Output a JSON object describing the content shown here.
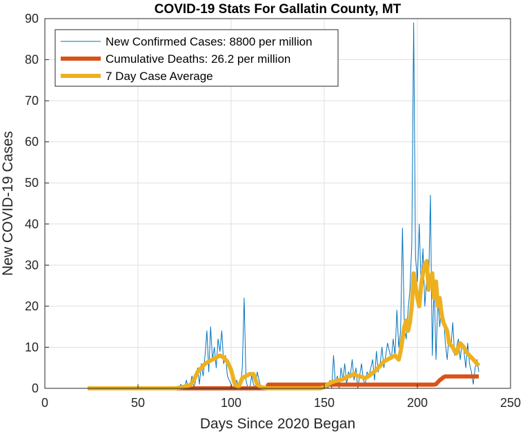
{
  "chart_data": {
    "type": "line",
    "title": "COVID-19 Stats For Gallatin County, MT",
    "xlabel": "Days Since 2020 Began",
    "ylabel": "New COVID-19 Cases",
    "xlim": [
      0,
      250
    ],
    "ylim": [
      0,
      90
    ],
    "xticks": [
      0,
      50,
      100,
      150,
      200,
      250
    ],
    "yticks": [
      0,
      10,
      20,
      30,
      40,
      50,
      60,
      70,
      80,
      90
    ],
    "grid": true,
    "legend_position": "top-left",
    "series": [
      {
        "name": "New Confirmed Cases: 8800 per million",
        "color": "#0072BD",
        "line_width": 1,
        "x": [
          23,
          70,
          72,
          73,
          74,
          75,
          76,
          77,
          78,
          79,
          80,
          81,
          82,
          83,
          84,
          85,
          86,
          87,
          88,
          89,
          90,
          91,
          92,
          93,
          94,
          95,
          96,
          97,
          98,
          99,
          100,
          101,
          102,
          103,
          104,
          105,
          106,
          107,
          108,
          109,
          110,
          111,
          112,
          113,
          114,
          115,
          116,
          120,
          125,
          130,
          135,
          140,
          145,
          148,
          150,
          151,
          152,
          153,
          154,
          155,
          156,
          157,
          158,
          159,
          160,
          161,
          162,
          163,
          164,
          165,
          166,
          167,
          168,
          169,
          170,
          171,
          172,
          173,
          174,
          175,
          176,
          177,
          178,
          179,
          180,
          181,
          182,
          183,
          184,
          185,
          186,
          187,
          188,
          189,
          190,
          191,
          192,
          193,
          194,
          195,
          196,
          197,
          198,
          199,
          200,
          201,
          202,
          203,
          204,
          205,
          206,
          207,
          208,
          209,
          210,
          211,
          212,
          213,
          214,
          215,
          216,
          217,
          218,
          219,
          220,
          221,
          222,
          223,
          224,
          225,
          226,
          227,
          228,
          229,
          230,
          231,
          232,
          233
        ],
        "y": [
          0,
          0,
          0,
          1,
          0,
          0,
          2,
          0,
          1,
          3,
          0,
          2,
          5,
          1,
          6,
          3,
          8,
          14,
          4,
          15,
          7,
          10,
          5,
          12,
          9,
          14,
          6,
          8,
          3,
          2,
          1,
          0,
          0,
          2,
          0,
          0,
          5,
          22,
          2,
          0,
          0,
          3,
          1,
          0,
          4,
          2,
          0,
          0,
          0,
          0,
          0,
          0,
          0,
          0,
          0,
          1,
          0,
          2,
          0,
          8,
          1,
          3,
          0,
          5,
          2,
          6,
          1,
          4,
          3,
          7,
          2,
          5,
          0,
          3,
          6,
          2,
          1,
          4,
          3,
          5,
          7,
          2,
          9,
          4,
          6,
          10,
          5,
          8,
          11,
          9,
          7,
          12,
          8,
          19,
          10,
          14,
          39,
          15,
          12,
          19,
          24,
          35,
          89,
          32,
          26,
          40,
          25,
          34,
          20,
          27,
          24,
          47,
          8,
          26,
          7,
          22,
          15,
          20,
          18,
          11,
          7,
          13,
          10,
          16,
          8,
          10,
          12,
          7,
          11,
          9,
          5,
          11,
          6,
          4,
          1,
          5,
          7,
          4
        ]
      },
      {
        "name": "Cumulative Deaths: 26.2 per million",
        "color": "#D95319",
        "line_width": 6,
        "x": [
          23,
          119,
          120,
          209,
          210,
          212,
          213,
          214,
          215,
          233
        ],
        "y": [
          0,
          0,
          0.9,
          0.9,
          1.0,
          2.0,
          2.3,
          2.7,
          2.9,
          2.9
        ]
      },
      {
        "name": "7 Day Case Average",
        "color": "#EDB120",
        "line_width": 6,
        "x": [
          23,
          70,
          74,
          78,
          80,
          82,
          84,
          86,
          88,
          90,
          92,
          94,
          96,
          98,
          100,
          102,
          104,
          106,
          108,
          110,
          112,
          114,
          116,
          118,
          120,
          125,
          130,
          135,
          140,
          145,
          148,
          150,
          152,
          154,
          156,
          158,
          160,
          162,
          164,
          166,
          168,
          170,
          172,
          174,
          176,
          178,
          180,
          182,
          184,
          186,
          188,
          190,
          191,
          192,
          193,
          194,
          195,
          196,
          197,
          198,
          199,
          200,
          201,
          202,
          203,
          204,
          205,
          206,
          207,
          208,
          209,
          210,
          211,
          212,
          213,
          214,
          215,
          216,
          217,
          218,
          219,
          220,
          221,
          222,
          223,
          224,
          225,
          226,
          227,
          228,
          229,
          230,
          231,
          232,
          233
        ],
        "y": [
          0,
          0,
          0.3,
          0.8,
          2,
          4,
          5,
          6,
          6.5,
          7,
          7.5,
          8,
          7.5,
          6.5,
          4.5,
          1,
          0.3,
          2.5,
          3,
          3.5,
          3.5,
          1,
          0.3,
          0.1,
          0,
          0,
          0,
          0,
          0,
          0,
          0,
          0.3,
          1,
          1.5,
          1.8,
          2,
          2.2,
          2.8,
          3,
          3.5,
          3,
          2.8,
          2.5,
          3,
          3.8,
          4.5,
          5.5,
          6.5,
          7,
          7.5,
          8,
          7,
          9,
          12,
          15,
          16.5,
          14,
          16,
          20,
          28,
          25,
          22,
          20,
          25,
          28,
          30,
          31,
          24,
          27,
          28,
          22,
          26,
          20,
          22,
          18,
          16,
          15,
          14,
          11,
          10.5,
          10,
          9,
          8.5,
          10,
          11,
          10.5,
          10,
          9,
          8.5,
          8,
          7.5,
          7,
          6.5,
          6,
          5.5
        ]
      }
    ]
  }
}
